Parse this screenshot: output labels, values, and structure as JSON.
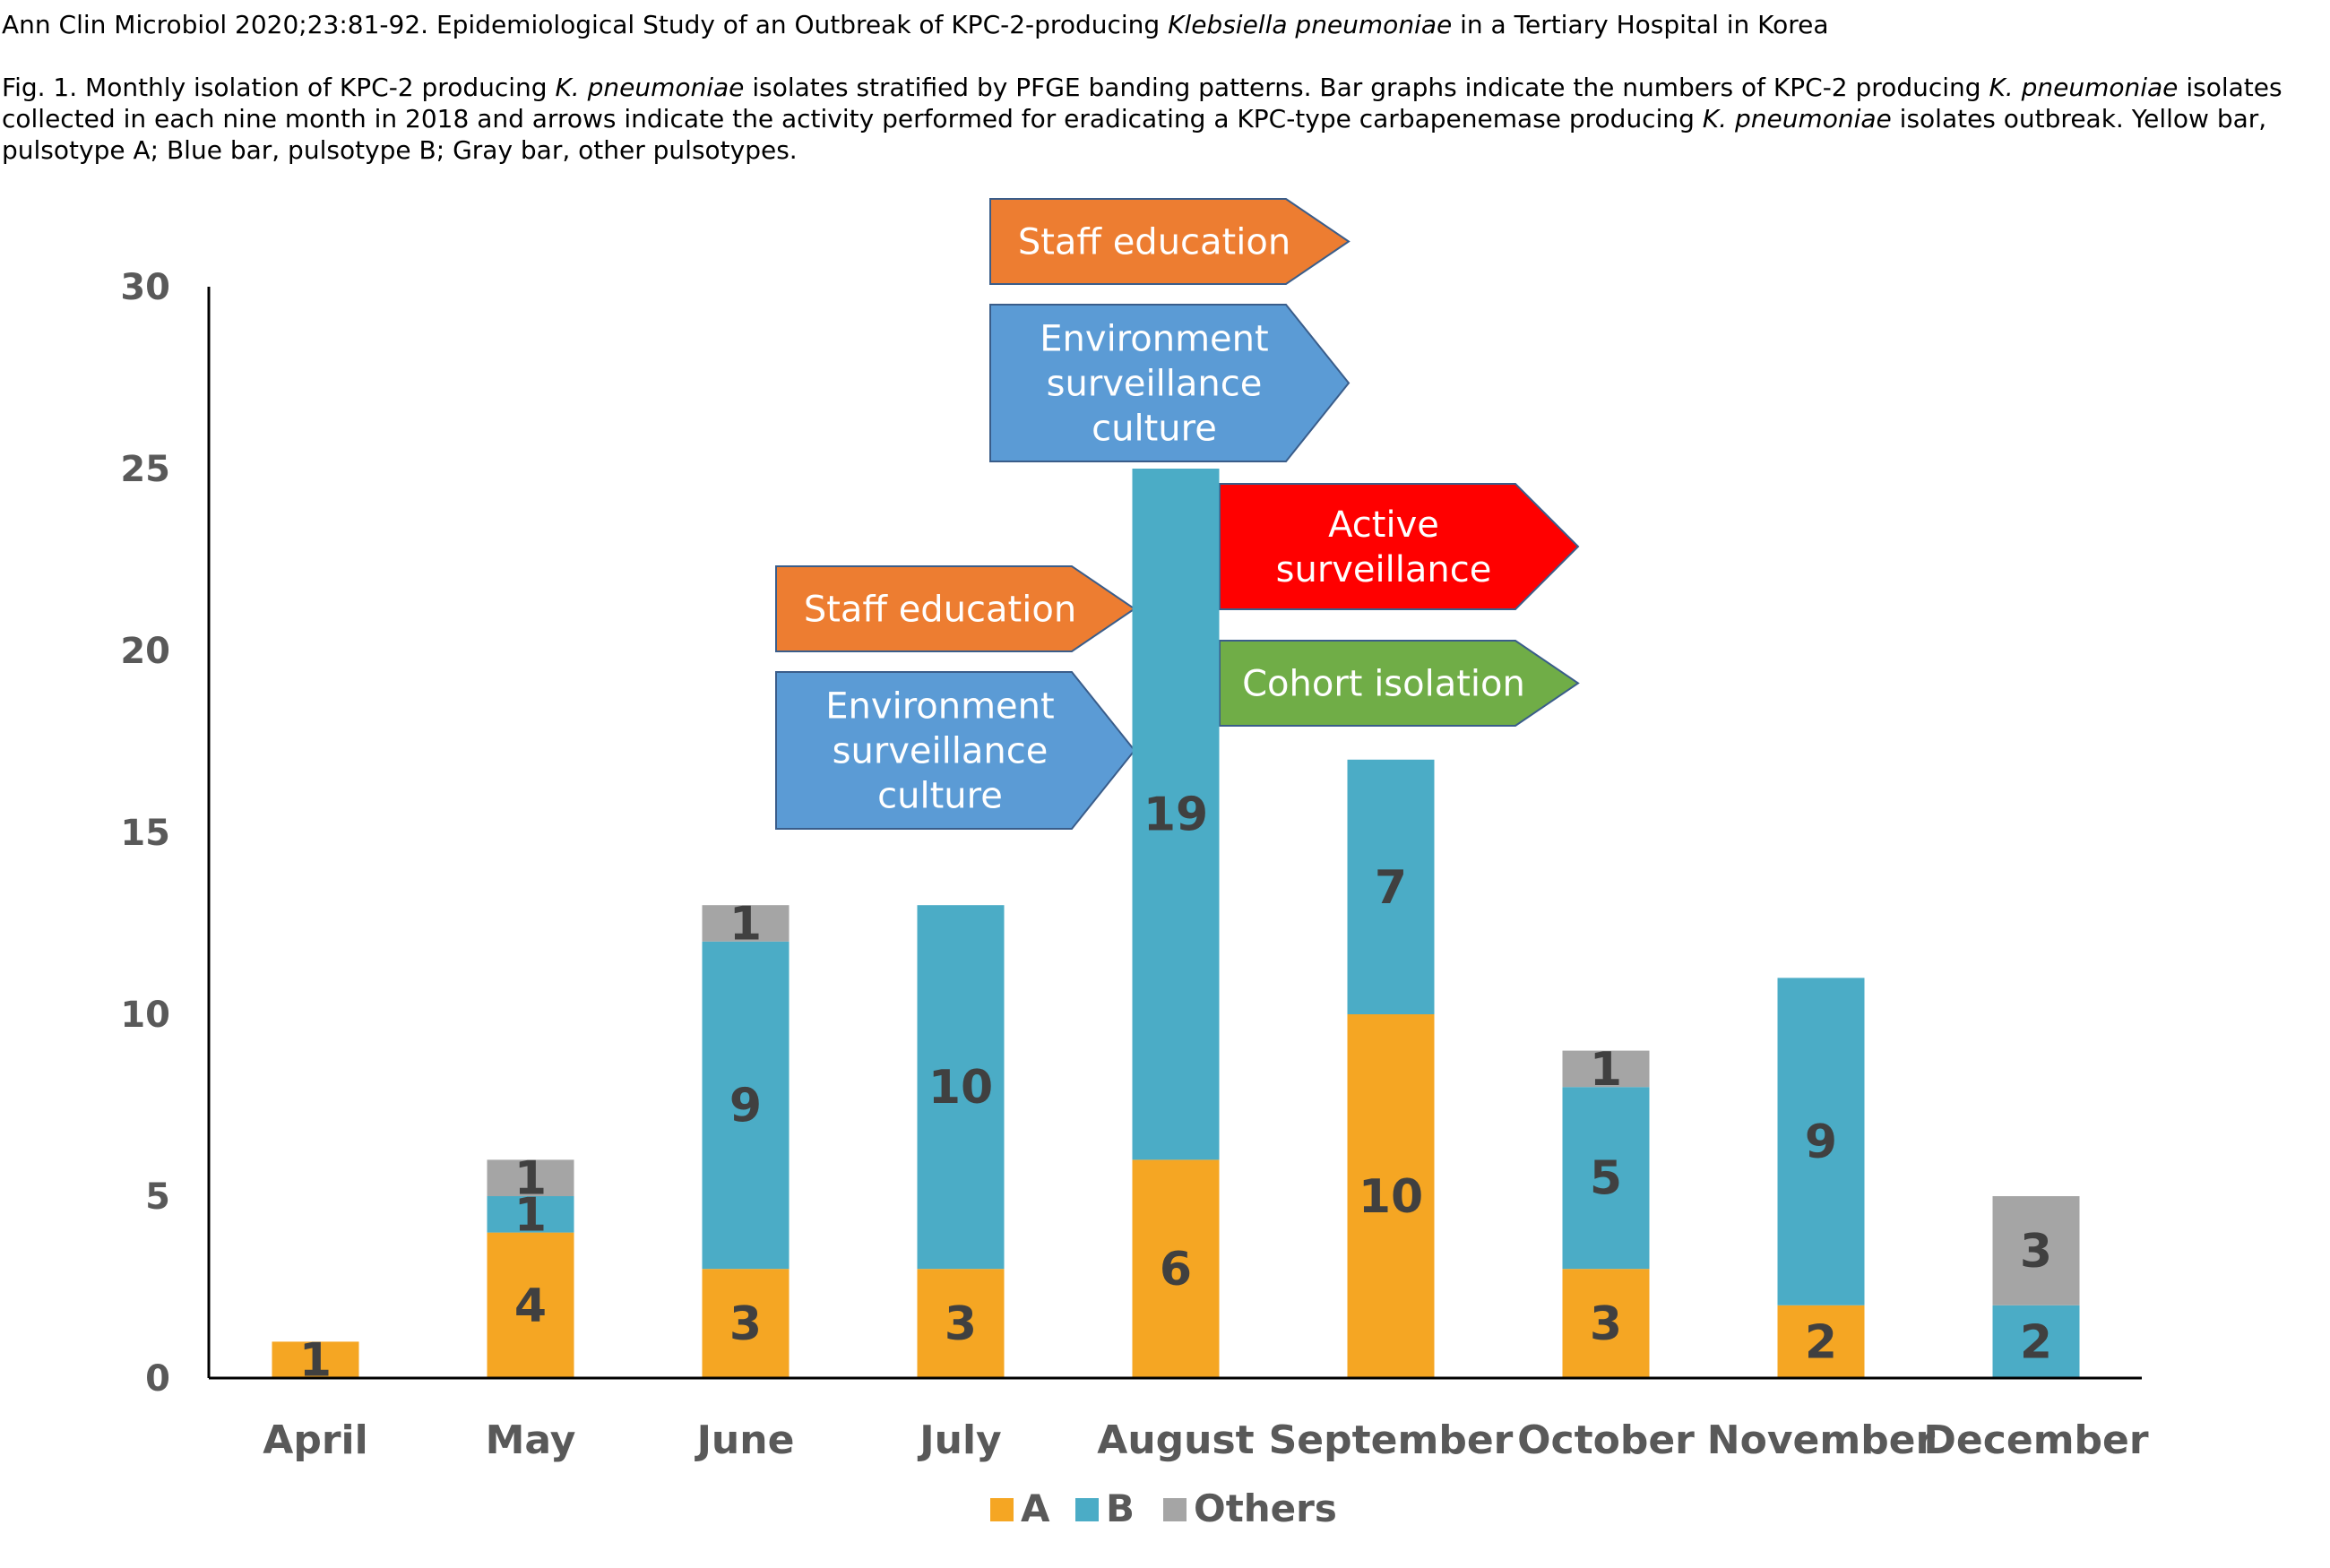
{
  "citation": {
    "pre": "Ann Clin Microbiol 2020;23:81-92. Epidemiological Study of an Outbreak of KPC-2-producing ",
    "italic": "Klebsiella pneumoniae",
    "post": " in a Tertiary Hospital in Korea"
  },
  "caption": {
    "p1": "Fig. 1. Monthly isolation of KPC-2 producing ",
    "i1": "K. pneumoniae",
    "p2": " isolates stratified by PFGE banding patterns. Bar graphs indicate the numbers of KPC-2 producing ",
    "i2": "K. pneumoniae",
    "p3": " isolates collected in each nine month in 2018 and arrows indicate the activity performed for eradicating a KPC-type carbapenemase producing ",
    "i3": "K. pneumoniae",
    "p4": " isolates outbreak. Yellow bar, pulsotype A; Blue bar, pulsotype B; Gray bar, other pulsotypes."
  },
  "chart_data": {
    "type": "bar",
    "stacked": true,
    "categories": [
      "April",
      "May",
      "June",
      "July",
      "August",
      "September",
      "October",
      "November",
      "December"
    ],
    "series": [
      {
        "name": "A",
        "color": "#F5A623",
        "values": [
          1,
          4,
          3,
          3,
          6,
          10,
          3,
          2,
          0
        ]
      },
      {
        "name": "B",
        "color": "#4BACC6",
        "values": [
          0,
          1,
          9,
          10,
          19,
          7,
          5,
          9,
          2
        ]
      },
      {
        "name": "Others",
        "color": "#A5A5A5",
        "values": [
          0,
          1,
          1,
          0,
          0,
          0,
          1,
          0,
          3
        ]
      }
    ],
    "ylim": [
      0,
      30
    ],
    "yticks": [
      0,
      5,
      10,
      15,
      20,
      25,
      30
    ],
    "legend": "bottom-center",
    "grid": false,
    "annotations": [
      {
        "category": "June",
        "lines": [
          "Staff education"
        ],
        "color": "#ED7D31"
      },
      {
        "category": "June",
        "lines": [
          "Environment",
          "surveillance",
          "culture"
        ],
        "color": "#5B9BD5"
      },
      {
        "category": "July",
        "lines": [
          "Staff education"
        ],
        "color": "#ED7D31"
      },
      {
        "category": "July",
        "lines": [
          "Environment",
          "surveillance",
          "culture"
        ],
        "color": "#5B9BD5"
      },
      {
        "category": "August",
        "lines": [
          "Active",
          "surveillance"
        ],
        "color": "#FF0000"
      },
      {
        "category": "August",
        "lines": [
          "Cohort isolation"
        ],
        "color": "#70AD47"
      }
    ]
  }
}
